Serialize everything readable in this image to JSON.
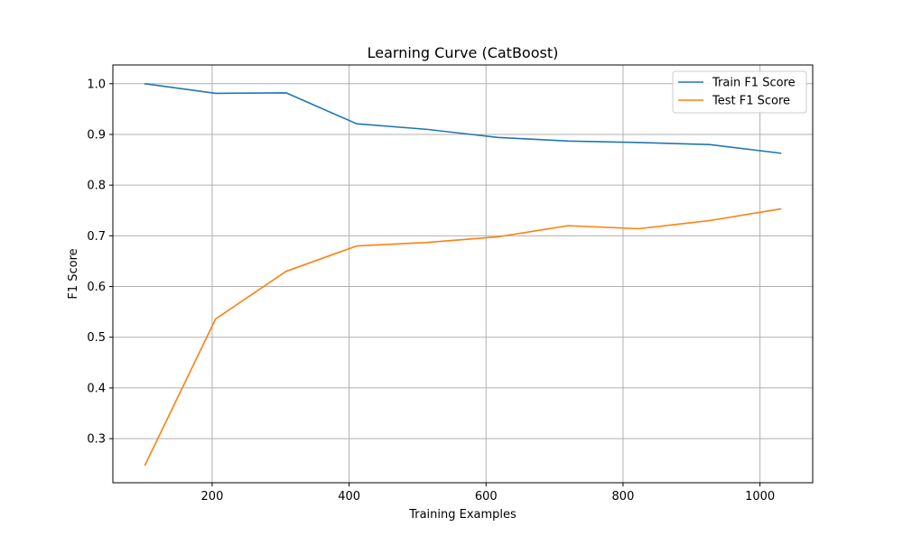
{
  "chart_data": {
    "type": "line",
    "title": "Learning Curve (CatBoost)",
    "xlabel": "Training Examples",
    "ylabel": "F1 Score",
    "xlim": [
      55,
      1077
    ],
    "ylim": [
      0.213,
      1.037
    ],
    "xticks": [
      200,
      400,
      600,
      800,
      1000
    ],
    "yticks": [
      0.3,
      0.4,
      0.5,
      0.6,
      0.7,
      0.8,
      0.9,
      1.0
    ],
    "grid": true,
    "legend_position": "upper-right",
    "x": [
      102,
      205,
      308,
      411,
      514,
      617,
      720,
      823,
      926,
      1030
    ],
    "series": [
      {
        "name": "Train F1 Score",
        "color": "#1f77b4",
        "values": [
          1.0,
          0.981,
          0.982,
          0.921,
          0.91,
          0.894,
          0.887,
          0.884,
          0.88,
          0.863
        ]
      },
      {
        "name": "Test F1 Score",
        "color": "#ff7f0e",
        "values": [
          0.248,
          0.536,
          0.63,
          0.68,
          0.687,
          0.698,
          0.72,
          0.714,
          0.73,
          0.753
        ]
      }
    ]
  }
}
